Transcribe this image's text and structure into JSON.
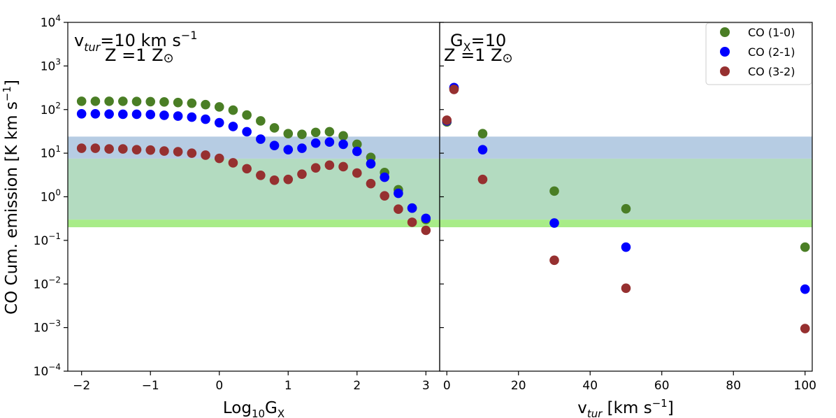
{
  "chart_data": [
    {
      "type": "scatter",
      "panel": "left",
      "xlabel_main": "Log",
      "xlabel_sub": "10",
      "xlabel_var": "G",
      "xlabel_var_sub": "X",
      "ylabel": "CO Cum. emission [K km s",
      "ylabel_exp": "−1",
      "ylabel_close": "]",
      "yscale": "log",
      "xlim": [
        -2.2,
        3.2
      ],
      "ylim": [
        0.0001,
        10000
      ],
      "xticks": [
        -2,
        -1,
        0,
        1,
        2,
        3
      ],
      "xtick_labels": [
        "−2",
        "−1",
        "0",
        "1",
        "2",
        "3"
      ],
      "yticks": [
        0.0001,
        0.001,
        0.01,
        0.1,
        1,
        10,
        100,
        1000,
        10000
      ],
      "ytick_base": "10",
      "ytick_exps": [
        "−4",
        "−3",
        "−2",
        "−1",
        "0",
        "1",
        "2",
        "3",
        "4"
      ],
      "annotation_line1_prefix": "v",
      "annotation_line1_sub": "tur",
      "annotation_line1_main": "=10 km s",
      "annotation_line1_exp": "−1",
      "annotation_line2_main": "Z =1 Z",
      "annotation_line2_sym": "⊙",
      "x": [
        -2.0,
        -1.8,
        -1.6,
        -1.4,
        -1.2,
        -1.0,
        -0.8,
        -0.6,
        -0.4,
        -0.2,
        0.0,
        0.2,
        0.4,
        0.6,
        0.8,
        1.0,
        1.2,
        1.4,
        1.6,
        1.8,
        2.0,
        2.2,
        2.4,
        2.6,
        2.8,
        3.0
      ],
      "series": [
        {
          "name": "CO (1-0)",
          "color": "#4a7e25",
          "values": [
            155,
            155,
            155,
            155,
            153,
            152,
            150,
            145,
            140,
            130,
            115,
            97,
            75,
            55,
            38,
            28,
            27,
            30,
            31,
            25,
            16,
            8.0,
            3.6,
            1.45,
            0.55,
            0.3
          ]
        },
        {
          "name": "CO (2-1)",
          "color": "#0000ff",
          "values": [
            80,
            80,
            79,
            78,
            78,
            77,
            74,
            71,
            67,
            60,
            50,
            41,
            31,
            21,
            15,
            12,
            13,
            17,
            18,
            16,
            11,
            5.7,
            2.8,
            1.2,
            0.55,
            0.32
          ]
        },
        {
          "name": "CO (3-2)",
          "color": "#963030",
          "values": [
            13,
            13,
            12.5,
            12.5,
            12,
            11.8,
            11.2,
            10.8,
            10,
            9.0,
            7.6,
            6.0,
            4.4,
            3.1,
            2.4,
            2.5,
            3.3,
            4.6,
            5.3,
            4.9,
            3.5,
            2.0,
            1.05,
            0.52,
            0.26,
            0.17
          ]
        }
      ]
    },
    {
      "type": "scatter",
      "panel": "right",
      "xlabel_main": "v",
      "xlabel_sub": "tur",
      "xlabel_unit": " [km s",
      "xlabel_exp": "−1",
      "xlabel_close": "]",
      "yscale": "log",
      "xlim": [
        -2,
        102
      ],
      "ylim": [
        0.0001,
        10000
      ],
      "xticks": [
        0,
        20,
        40,
        60,
        80,
        100
      ],
      "xtick_labels": [
        "0",
        "20",
        "40",
        "60",
        "80",
        "100"
      ],
      "annotation_line1_prefix": "G",
      "annotation_line1_sub": "X",
      "annotation_line1_main": "=10",
      "annotation_line2_main": "Z =1 Z",
      "annotation_line2_sym": "⊙",
      "x": [
        0,
        2,
        10,
        30,
        50,
        100
      ],
      "series": [
        {
          "name": "CO (1-0)",
          "color": "#4a7e25",
          "values": [
            52,
            310,
            28,
            1.35,
            0.53,
            0.07
          ]
        },
        {
          "name": "CO (2-1)",
          "color": "#0000ff",
          "values": [
            55,
            320,
            12,
            0.25,
            0.07,
            0.0076
          ]
        },
        {
          "name": "CO (3-2)",
          "color": "#963030",
          "values": [
            57,
            290,
            2.5,
            0.035,
            0.008,
            0.00095
          ]
        }
      ]
    }
  ],
  "legend": {
    "placement": "top-right",
    "items": [
      {
        "label": "CO (1-0)",
        "color": "#4a7e25"
      },
      {
        "label": "CO (2-1)",
        "color": "#0000ff"
      },
      {
        "label": "CO (3-2)",
        "color": "#963030"
      }
    ]
  },
  "bands": [
    {
      "name": "green-band",
      "ymin": 0.2,
      "ymax": 0.3,
      "color": "#a8ec88"
    },
    {
      "name": "teal-band",
      "ymin": 0.3,
      "ymax": 7.5,
      "color": "#b3dbc0"
    },
    {
      "name": "blue-band",
      "ymin": 7.5,
      "ymax": 24,
      "color": "#b6cce3"
    }
  ]
}
